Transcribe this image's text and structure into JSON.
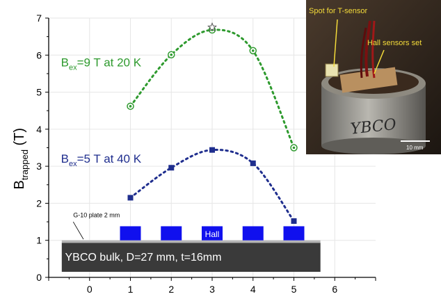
{
  "chart_data": {
    "type": "scatter",
    "xlim": [
      -1,
      7
    ],
    "ylim": [
      0,
      7
    ],
    "x_ticks": [
      0,
      1,
      2,
      3,
      4,
      5,
      6
    ],
    "y_ticks": [
      0,
      1,
      2,
      3,
      4,
      5,
      6,
      7
    ],
    "grid": true,
    "ylabel": {
      "main": "B",
      "sub": "trapped",
      "unit": " (T)"
    },
    "series": [
      {
        "name_main": "B",
        "name_sub": "ex",
        "name_rest": "=9 T at 20 K",
        "color": "#2e9a2e",
        "marker": "circle",
        "x": [
          1,
          2,
          3,
          4,
          5
        ],
        "y": [
          4.62,
          6.01,
          6.68,
          6.12,
          3.5
        ],
        "curve_peak_x": 3.25,
        "star": {
          "x": 3,
          "y": 6.75
        }
      },
      {
        "name_main": "B",
        "name_sub": "ex",
        "name_rest": "=5 T at 40 K",
        "color": "#1f2e8e",
        "marker": "square",
        "x": [
          1,
          2,
          3,
          4,
          5
        ],
        "y": [
          2.15,
          2.96,
          3.44,
          3.08,
          1.52
        ],
        "curve_peak_x": 3.25
      }
    ],
    "annotations": {
      "plate_label": "G-10 plate 2 mm",
      "hall_label": "Hall",
      "bulk_label": "YBCO bulk, D=27 mm, t=16mm",
      "sensor_positions": [
        1,
        2,
        3,
        4,
        5
      ],
      "sensor_color": "#1010ee",
      "bulk_color": "#3a3a3a",
      "plate_color": "#b5b5b5"
    }
  },
  "photo": {
    "spot_label": "Spot for T-sensor",
    "hall_label": "Hall sensors set",
    "sample_text": "YBCO",
    "scale_text": "10 mm"
  }
}
